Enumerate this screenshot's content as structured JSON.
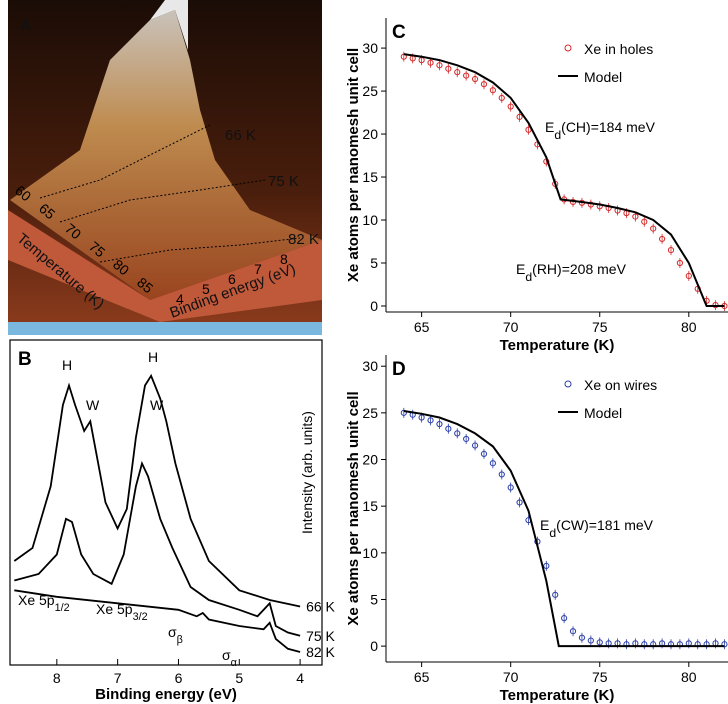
{
  "panel_a": {
    "panel": "A",
    "temperature_labels": [
      "66 K",
      "75 K",
      "82 K"
    ],
    "temperature_ticks": [
      60,
      65,
      70,
      75,
      80,
      85
    ],
    "temperature_title": "Temperature (K)",
    "energy_ticks": [
      4,
      5,
      6,
      7,
      8
    ],
    "energy_title": "Binding energy (eV)"
  },
  "chart_data": [
    {
      "type": "line",
      "panel": "B",
      "xlabel": "Binding energy (eV)",
      "ylabel": "Intensity (arb. units)",
      "xlim": [
        8.77,
        3.64
      ],
      "xticks": [
        8,
        7,
        6,
        5,
        4
      ],
      "ylim": [
        0,
        100
      ],
      "annotations": [
        {
          "text": "H"
        },
        {
          "text": "W"
        },
        {
          "text": "H"
        },
        {
          "text": "W"
        },
        {
          "text": "Xe 5p",
          "sub": "1/2"
        },
        {
          "text": "Xe 5p",
          "sub": "3/2"
        },
        {
          "text": "σ",
          "sub": "β"
        },
        {
          "text": "σ",
          "sub": "α"
        }
      ],
      "series": [
        {
          "name": "66 K",
          "color": "#000000",
          "x": [
            8.7,
            8.4,
            8.1,
            7.9,
            7.8,
            7.7,
            7.55,
            7.45,
            7.35,
            7.2,
            7.0,
            6.85,
            6.7,
            6.55,
            6.45,
            6.3,
            6.2,
            6.05,
            5.8,
            5.5,
            5.0,
            4.5,
            4.0
          ],
          "values": [
            32,
            36,
            55,
            80,
            86,
            80,
            72,
            75,
            65,
            50,
            42,
            48,
            70,
            86,
            89,
            82,
            75,
            62,
            45,
            32,
            23,
            20,
            18
          ]
        },
        {
          "name": "75 K",
          "color": "#000000",
          "x": [
            8.7,
            8.3,
            8.0,
            7.85,
            7.75,
            7.6,
            7.4,
            7.1,
            6.9,
            6.7,
            6.6,
            6.5,
            6.3,
            6.1,
            5.8,
            5.5,
            5.0,
            4.7,
            4.55,
            4.5,
            4.4,
            4.2,
            4.0
          ],
          "values": [
            26,
            28,
            34,
            45,
            44,
            34,
            28,
            25,
            34,
            55,
            62,
            58,
            45,
            36,
            24,
            20,
            17,
            15,
            18,
            19,
            12,
            10,
            9
          ]
        },
        {
          "name": "82 K",
          "color": "#000000",
          "x": [
            8.7,
            8.0,
            7.0,
            6.0,
            5.7,
            5.6,
            5.5,
            5.0,
            4.6,
            4.5,
            4.4,
            4.2,
            4.0
          ],
          "values": [
            23,
            21,
            19,
            17,
            15,
            16,
            14,
            12,
            11,
            13,
            8,
            5,
            4
          ]
        }
      ]
    },
    {
      "type": "scatter",
      "panel": "C",
      "xlabel": "Temperature (K)",
      "ylabel": "Xe atoms per nanomesh unit cell",
      "xlim": [
        63,
        82.2
      ],
      "xticks": [
        65,
        70,
        75,
        80
      ],
      "ylim": [
        -0.7,
        33.5
      ],
      "yticks": [
        0,
        5,
        10,
        15,
        20,
        25,
        30
      ],
      "annotations": [
        {
          "text": "E",
          "sub": "d",
          "rest": "(CH)=184 meV"
        },
        {
          "text": "E",
          "sub": "d",
          "rest": "(RH)=208 meV"
        }
      ],
      "series": [
        {
          "name": "Xe in holes",
          "color": "#d42a2a",
          "marker": "circle",
          "x": [
            64,
            64.5,
            65,
            65.5,
            66,
            66.5,
            67,
            67.5,
            68,
            68.5,
            69,
            69.5,
            70,
            70.5,
            71,
            71.5,
            72,
            72.5,
            73,
            73.5,
            74,
            74.5,
            75,
            75.5,
            76,
            76.5,
            77,
            77.5,
            78,
            78.5,
            79,
            79.5,
            80,
            80.5,
            81,
            81.5,
            82
          ],
          "values": [
            29.0,
            28.8,
            28.6,
            28.3,
            28.0,
            27.6,
            27.2,
            26.8,
            26.4,
            25.8,
            25.1,
            24.2,
            23.2,
            22.0,
            20.5,
            18.8,
            16.8,
            14.2,
            12.4,
            12.1,
            12.0,
            11.8,
            11.6,
            11.4,
            11.1,
            10.8,
            10.4,
            9.8,
            9.0,
            7.8,
            6.5,
            5.0,
            3.5,
            2.0,
            0.6,
            0.1,
            0.0
          ]
        },
        {
          "name": "Model",
          "color": "#000000",
          "marker": "line",
          "x": [
            64,
            65,
            66,
            67,
            68,
            69,
            70,
            71,
            72,
            72.8,
            74,
            75,
            76,
            77,
            78,
            79,
            80,
            80.5,
            81,
            82
          ],
          "values": [
            29.3,
            29.0,
            28.6,
            28.0,
            27.2,
            26.0,
            24.2,
            21.3,
            17.3,
            12.4,
            12.1,
            11.8,
            11.4,
            10.9,
            10.0,
            8.3,
            5.0,
            2.5,
            0,
            0
          ]
        }
      ]
    },
    {
      "type": "scatter",
      "panel": "D",
      "xlabel": "Temperature (K)",
      "ylabel": "Xe atoms per nanomesh unit cell",
      "xlim": [
        63,
        82.2
      ],
      "xticks": [
        65,
        70,
        75,
        80
      ],
      "ylim": [
        -1.7,
        31.2
      ],
      "yticks": [
        0,
        5,
        10,
        15,
        20,
        25,
        30
      ],
      "annotations": [
        {
          "text": "E",
          "sub": "d",
          "rest": "(CW)=181 meV"
        }
      ],
      "series": [
        {
          "name": "Xe on wires",
          "color": "#2a3fa8",
          "marker": "circle",
          "x": [
            64,
            64.5,
            65,
            65.5,
            66,
            66.5,
            67,
            67.5,
            68,
            68.5,
            69,
            69.5,
            70,
            70.5,
            71,
            71.5,
            72,
            72.5,
            73,
            73.5,
            74,
            74.5,
            75,
            75.5,
            76,
            76.5,
            77,
            77.5,
            78,
            78.5,
            79,
            79.5,
            80,
            80.5,
            81,
            81.5,
            82
          ],
          "values": [
            25.0,
            24.8,
            24.5,
            24.2,
            23.8,
            23.3,
            22.8,
            22.2,
            21.5,
            20.6,
            19.6,
            18.4,
            17.0,
            15.4,
            13.5,
            11.2,
            8.6,
            5.5,
            3.0,
            1.6,
            0.9,
            0.6,
            0.4,
            0.3,
            0.3,
            0.2,
            0.3,
            0.2,
            0.2,
            0.3,
            0.2,
            0.2,
            0.3,
            0.2,
            0.2,
            0.3,
            0.2
          ]
        },
        {
          "name": "Model",
          "color": "#000000",
          "marker": "line",
          "x": [
            64,
            65,
            66,
            67,
            68,
            69,
            70,
            71,
            72,
            72.7,
            82
          ],
          "values": [
            25.2,
            24.9,
            24.5,
            23.8,
            22.8,
            21.4,
            18.8,
            14.5,
            7.0,
            0,
            0
          ]
        }
      ]
    }
  ]
}
